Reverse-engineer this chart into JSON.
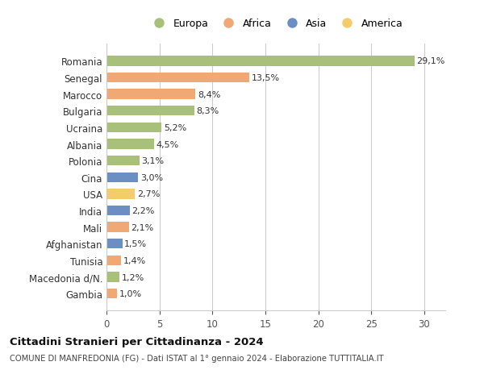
{
  "countries": [
    "Romania",
    "Senegal",
    "Marocco",
    "Bulgaria",
    "Ucraina",
    "Albania",
    "Polonia",
    "Cina",
    "USA",
    "India",
    "Mali",
    "Afghanistan",
    "Tunisia",
    "Macedonia d/N.",
    "Gambia"
  ],
  "values": [
    29.1,
    13.5,
    8.4,
    8.3,
    5.2,
    4.5,
    3.1,
    3.0,
    2.7,
    2.2,
    2.1,
    1.5,
    1.4,
    1.2,
    1.0
  ],
  "labels": [
    "29,1%",
    "13,5%",
    "8,4%",
    "8,3%",
    "5,2%",
    "4,5%",
    "3,1%",
    "3,0%",
    "2,7%",
    "2,2%",
    "2,1%",
    "1,5%",
    "1,4%",
    "1,2%",
    "1,0%"
  ],
  "colors": [
    "#a8c07a",
    "#f0a875",
    "#f0a875",
    "#a8c07a",
    "#a8c07a",
    "#a8c07a",
    "#a8c07a",
    "#6b8fc2",
    "#f5cc6a",
    "#6b8fc2",
    "#f0a875",
    "#6b8fc2",
    "#f0a875",
    "#a8c07a",
    "#f0a875"
  ],
  "legend_labels": [
    "Europa",
    "Africa",
    "Asia",
    "America"
  ],
  "legend_colors": [
    "#a8c07a",
    "#f0a875",
    "#6b8fc2",
    "#f5cc6a"
  ],
  "title": "Cittadini Stranieri per Cittadinanza - 2024",
  "subtitle": "COMUNE DI MANFREDONIA (FG) - Dati ISTAT al 1° gennaio 2024 - Elaborazione TUTTITALIA.IT",
  "xlim": [
    0,
    32
  ],
  "xticks": [
    0,
    5,
    10,
    15,
    20,
    25,
    30
  ],
  "background_color": "#ffffff",
  "grid_color": "#cccccc",
  "bar_height": 0.6
}
